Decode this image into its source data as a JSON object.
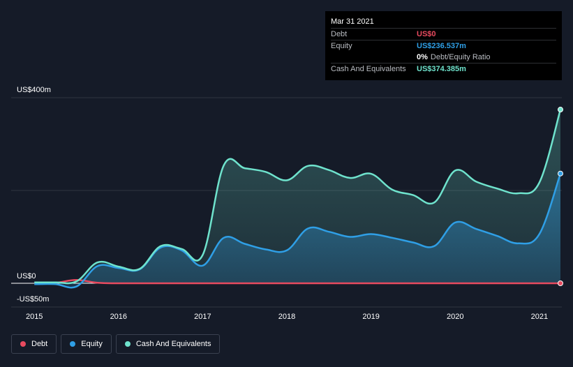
{
  "tooltip": {
    "date": "Mar 31 2021",
    "debt_label": "Debt",
    "debt_value": "US$0",
    "equity_label": "Equity",
    "equity_value": "US$236.537m",
    "ratio_pct": "0%",
    "ratio_text": "Debt/Equity Ratio",
    "cash_label": "Cash And Equivalents",
    "cash_value": "US$374.385m"
  },
  "legend": {
    "debt": "Debt",
    "equity": "Equity",
    "cash": "Cash And Equivalents"
  },
  "colors": {
    "debt": "#e84a5f",
    "equity": "#2f9fe6",
    "cash": "#6fe3cd",
    "grid": "#2f3440",
    "zero": "#ffffff"
  },
  "chart_data": {
    "type": "area",
    "title": "",
    "xlabel": "",
    "ylabel": "",
    "y_tick_labels": [
      "US$400m",
      "US$0",
      "-US$50m"
    ],
    "ylim": [
      -50,
      400
    ],
    "xlim": [
      2014.99,
      2021.25
    ],
    "x_ticks": [
      2015,
      2016,
      2017,
      2018,
      2019,
      2020,
      2021
    ],
    "x_tick_labels": [
      "2015",
      "2016",
      "2017",
      "2018",
      "2019",
      "2020",
      "2021"
    ],
    "series": [
      {
        "name": "Debt",
        "key": "debt",
        "x": [
          2015.0,
          2015.25,
          2015.5,
          2015.75,
          2016.0,
          2016.5,
          2017.0,
          2017.5,
          2018.0,
          2018.5,
          2019.0,
          2019.5,
          2020.0,
          2020.5,
          2021.0,
          2021.25
        ],
        "values": [
          0,
          1,
          7,
          1,
          0,
          0,
          0,
          0,
          0,
          0,
          0,
          0,
          0,
          0,
          0,
          0
        ]
      },
      {
        "name": "Equity",
        "key": "equity",
        "x": [
          2015.0,
          2015.25,
          2015.5,
          2015.75,
          2016.0,
          2016.25,
          2016.5,
          2016.75,
          2017.0,
          2017.25,
          2017.5,
          2017.75,
          2018.0,
          2018.25,
          2018.5,
          2018.75,
          2019.0,
          2019.25,
          2019.5,
          2019.75,
          2020.0,
          2020.25,
          2020.5,
          2020.75,
          2021.0,
          2021.25
        ],
        "values": [
          -2,
          -2,
          -7,
          37,
          33,
          30,
          77,
          71,
          38,
          98,
          85,
          73,
          71,
          118,
          111,
          100,
          106,
          98,
          88,
          80,
          131,
          117,
          102,
          86,
          106,
          236.537
        ]
      },
      {
        "name": "Cash And Equivalents",
        "key": "cash",
        "x": [
          2015.0,
          2015.25,
          2015.5,
          2015.75,
          2016.0,
          2016.25,
          2016.5,
          2016.75,
          2017.0,
          2017.25,
          2017.5,
          2017.75,
          2018.0,
          2018.25,
          2018.5,
          2018.75,
          2019.0,
          2019.25,
          2019.5,
          2019.75,
          2020.0,
          2020.25,
          2020.5,
          2020.75,
          2021.0,
          2021.25
        ],
        "values": [
          2,
          2,
          4,
          45,
          36,
          31,
          80,
          74,
          61,
          254,
          248,
          240,
          222,
          253,
          244,
          227,
          236,
          202,
          190,
          174,
          243,
          219,
          204,
          194,
          217,
          374.385
        ]
      }
    ]
  }
}
